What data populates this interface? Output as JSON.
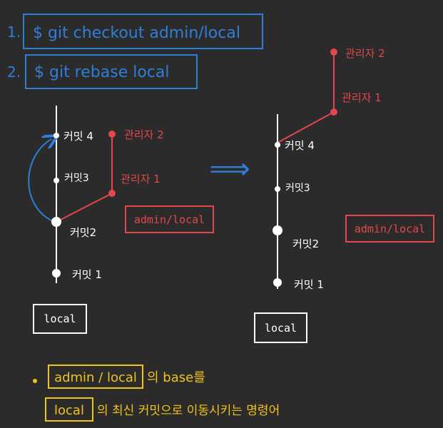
{
  "commands": [
    {
      "index": "1.",
      "text": "$ git checkout admin/local"
    },
    {
      "index": "2.",
      "text": "$ git rebase local"
    }
  ],
  "before": {
    "commits": [
      "커밋 1",
      "커밋2",
      "커밋3",
      "커밋 4"
    ],
    "admin_commits": [
      "관리자 1",
      "관리자 2"
    ],
    "local_label": "local",
    "admin_label": "admin/local"
  },
  "arrow_symbol": "⟹",
  "after": {
    "commits": [
      "커밋 1",
      "커밋2",
      "커밋3",
      "커밋 4"
    ],
    "admin_commits": [
      "관리자 1",
      "관리자 2"
    ],
    "local_label": "local",
    "admin_label": "admin/local"
  },
  "note": {
    "line1_box": "admin / local",
    "line1_rest": "의 base를",
    "line2_box": "local",
    "line2_rest": "의 최신 커밋으로 이동시키는 명령어"
  },
  "colors": {
    "background": "#2b2b2b",
    "white": "#ffffff",
    "red": "#e4474b",
    "blue": "#2f7ed8",
    "yellow": "#f0c419"
  }
}
